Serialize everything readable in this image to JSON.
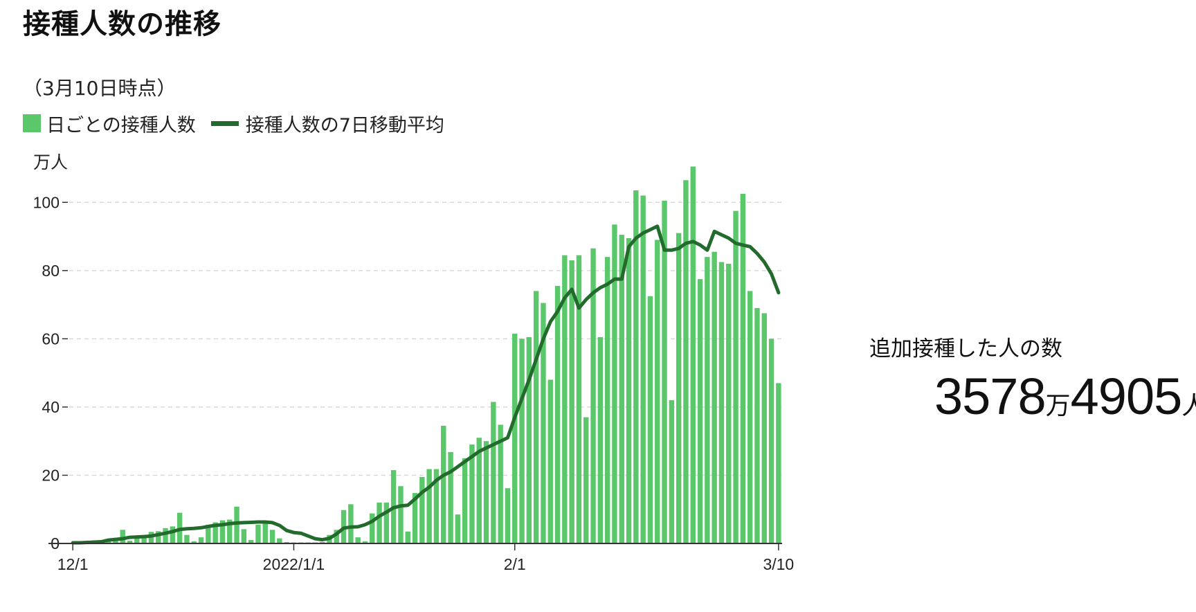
{
  "title": "接種人数の推移",
  "subtitle": "（3月10日時点）",
  "legend": {
    "bars_label": "日ごとの接種人数",
    "line_label": "接種人数の7日移動平均"
  },
  "colors": {
    "bar": "#5ac86a",
    "line": "#236b2d",
    "grid": "#d9d9d9",
    "axis": "#333333"
  },
  "total": {
    "label": "追加接種した人の数",
    "man_value": "3578",
    "man_unit": "万",
    "rest_value": "4905",
    "person_unit": "人"
  },
  "chart_data": {
    "type": "bar",
    "unit_label": "万人",
    "ylim": [
      0,
      110
    ],
    "y_ticks": [
      0,
      20,
      40,
      60,
      80,
      100
    ],
    "x_tick_labels": [
      {
        "label": "12/1",
        "index": 0
      },
      {
        "label": "2022/1/1",
        "index": 31
      },
      {
        "label": "2/1",
        "index": 62
      },
      {
        "label": "3/10",
        "index": 99
      }
    ],
    "grid": true,
    "legend_position": "top-left",
    "series": [
      {
        "name": "日ごとの接種人数",
        "kind": "bar",
        "values": [
          0.2,
          0.3,
          0.3,
          0.5,
          0.8,
          1.0,
          1.5,
          4.0,
          0.8,
          1.8,
          2.5,
          3.4,
          3.6,
          4.5,
          5.0,
          9.0,
          2.5,
          0.6,
          1.8,
          5.5,
          6.2,
          6.8,
          7.0,
          10.8,
          4.2,
          1.0,
          5.5,
          6.0,
          4.0,
          1.5,
          0.4,
          0.3,
          0.3,
          0.3,
          0.3,
          0.4,
          2.5,
          4.0,
          9.8,
          11.5,
          1.8,
          0.6,
          8.8,
          12.0,
          12.0,
          21.5,
          16.8,
          3.5,
          14.8,
          19.5,
          21.8,
          21.8,
          34.5,
          26.8,
          8.5,
          25.0,
          29.0,
          31.0,
          30.0,
          41.5,
          34.8,
          16.2,
          61.5,
          60.0,
          60.5,
          74.0,
          70.5,
          48.0,
          75.5,
          84.5,
          83.0,
          84.5,
          37.0,
          86.5,
          60.5,
          84.0,
          93.5,
          90.5,
          89.5,
          103.5,
          102.0,
          72.5,
          89.0,
          100.5,
          42.0,
          91.0,
          106.5,
          110.5,
          77.5,
          84.0,
          85.5,
          82.5,
          82.0,
          97.5,
          102.5,
          74.0,
          69.0,
          67.5,
          60.0,
          47.0
        ]
      },
      {
        "name": "接種人数の7日移動平均",
        "kind": "line",
        "values": [
          0.2,
          0.2,
          0.3,
          0.4,
          0.5,
          1.0,
          1.2,
          1.4,
          1.8,
          1.9,
          2.0,
          2.2,
          2.6,
          3.0,
          3.5,
          4.1,
          4.3,
          4.4,
          4.6,
          5.0,
          5.3,
          5.5,
          5.8,
          6.0,
          6.1,
          6.2,
          6.3,
          6.3,
          6.1,
          5.3,
          3.8,
          3.2,
          3.0,
          2.2,
          1.4,
          1.1,
          1.5,
          2.8,
          4.5,
          4.8,
          4.9,
          5.5,
          6.5,
          8.0,
          9.2,
          10.5,
          11.0,
          11.2,
          13.0,
          15.0,
          16.5,
          18.5,
          20.0,
          21.0,
          22.5,
          24.0,
          25.5,
          27.0,
          28.0,
          29.0,
          30.0,
          31.0,
          37.0,
          42.5,
          48.0,
          54.0,
          60.0,
          65.0,
          68.0,
          72.0,
          74.5,
          69.0,
          71.5,
          73.5,
          75.0,
          76.0,
          77.5,
          77.5,
          87.0,
          89.5,
          91.0,
          92.0,
          93.0,
          86.0,
          86.0,
          86.5,
          88.0,
          88.5,
          87.5,
          86.0,
          91.5,
          90.5,
          89.5,
          88.0,
          87.5,
          87.0,
          85.0,
          82.5,
          79.0,
          73.5
        ]
      }
    ]
  }
}
